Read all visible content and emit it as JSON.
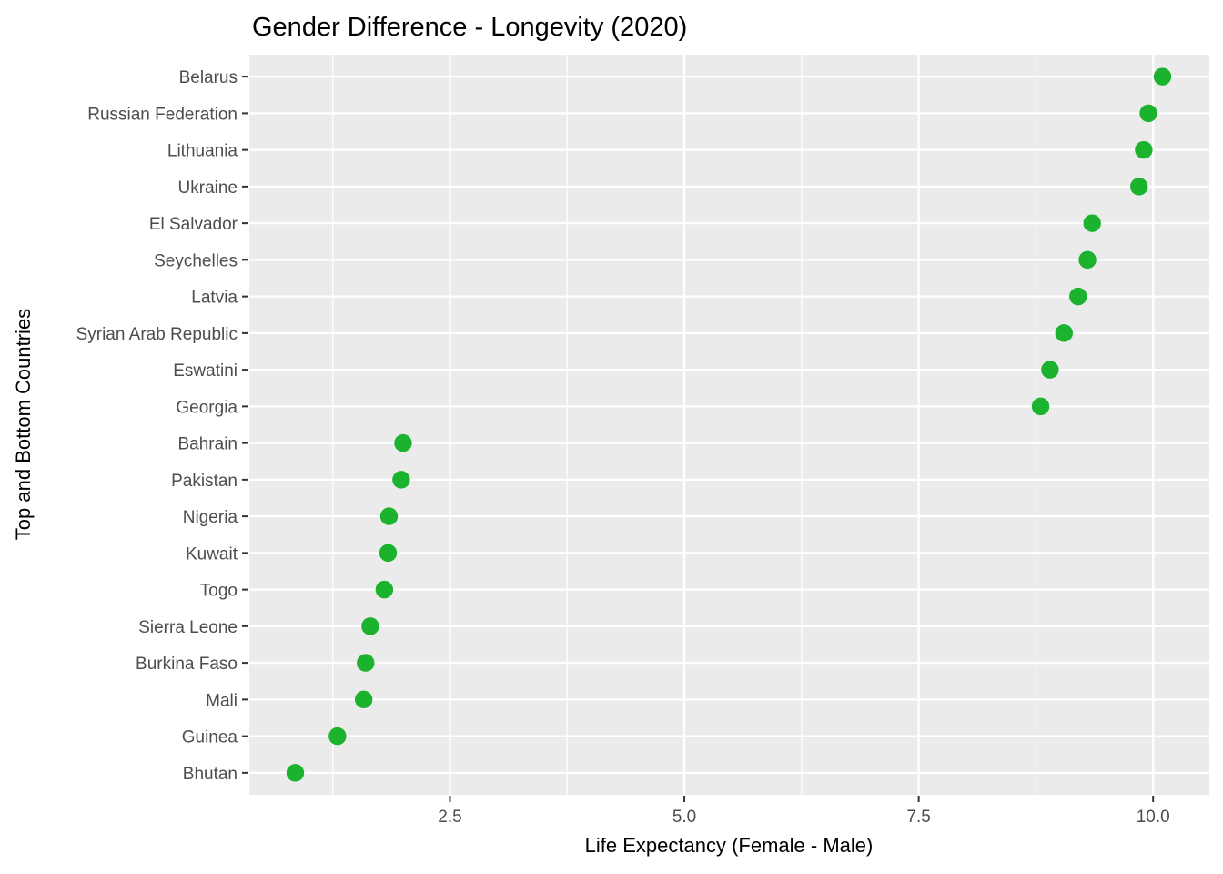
{
  "chart_data": {
    "type": "scatter",
    "subtype": "cleveland-dot-plot",
    "title": "Gender Difference - Longevity (2020)",
    "xlabel": "Life Expectancy (Female - Male)",
    "ylabel": "Top and Bottom Countries",
    "categories": [
      "Belarus",
      "Russian Federation",
      "Lithuania",
      "Ukraine",
      "El Salvador",
      "Seychelles",
      "Latvia",
      "Syrian Arab Republic",
      "Eswatini",
      "Georgia",
      "Bahrain",
      "Pakistan",
      "Nigeria",
      "Kuwait",
      "Togo",
      "Sierra Leone",
      "Burkina Faso",
      "Mali",
      "Guinea",
      "Bhutan"
    ],
    "values": [
      10.1,
      9.95,
      9.9,
      9.85,
      9.35,
      9.3,
      9.2,
      9.05,
      8.9,
      8.8,
      2.0,
      1.98,
      1.85,
      1.84,
      1.8,
      1.65,
      1.6,
      1.58,
      1.3,
      0.85
    ],
    "xlim": [
      0.36,
      10.6
    ],
    "xticks": [
      2.5,
      5.0,
      7.5,
      10.0
    ],
    "xtick_labels": [
      "2.5",
      "5.0",
      "7.5",
      "10.0"
    ],
    "minor_xticks": [
      1.25,
      3.75,
      6.25,
      8.75
    ],
    "grid": true,
    "legend": "none",
    "colors": {
      "point": "#1bb22d",
      "panel_background": "#ebebeb",
      "gridline": "#ffffff",
      "tick_mark": "#333333",
      "tick_label": "#4d4d4d",
      "title": "#000000"
    }
  }
}
